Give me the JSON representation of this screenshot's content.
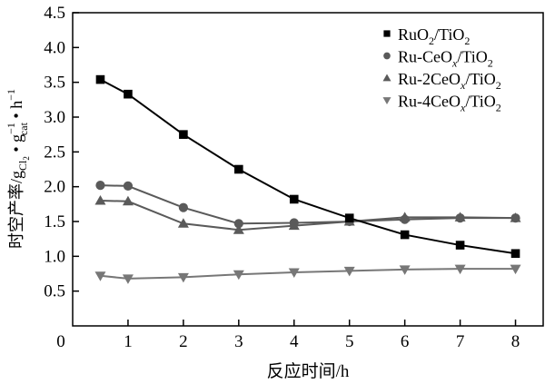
{
  "chart_data": {
    "type": "line",
    "title": "",
    "xlabel": "反应时间/h",
    "ylabel": {
      "main": "时空产率/g",
      "sub1": "Cl",
      "sub1b": "2",
      "mid": " • g",
      "sup2": "−1",
      "sub2": "cat",
      "end": " • h",
      "sup3": "−1"
    },
    "xlim": [
      0,
      8.5
    ],
    "ylim": [
      0,
      4.5
    ],
    "origin_label": "0",
    "xticks": [
      1,
      2,
      3,
      4,
      5,
      6,
      7,
      8
    ],
    "xtick_labels": [
      "1",
      "2",
      "3",
      "4",
      "5",
      "6",
      "7",
      "8"
    ],
    "yticks": [
      0.5,
      1.0,
      1.5,
      2.0,
      2.5,
      3.0,
      3.5,
      4.0,
      4.5
    ],
    "ytick_labels": [
      "0.5",
      "1.0",
      "1.5",
      "2.0",
      "2.5",
      "3.0",
      "3.5",
      "4.0",
      "4.5"
    ],
    "grid": false,
    "legend_position": "top-right",
    "x": [
      0.5,
      1,
      2,
      3,
      4,
      5,
      6,
      7,
      8
    ],
    "series": [
      {
        "name": "RuO2/TiO2",
        "legend": {
          "a": "RuO",
          "b": "2",
          "c": "/TiO",
          "d": "2"
        },
        "marker": "square",
        "color": "#000000",
        "values": [
          3.54,
          3.33,
          2.75,
          2.25,
          1.82,
          1.55,
          1.31,
          1.16,
          1.04
        ]
      },
      {
        "name": "Ru-CeOx/TiO2",
        "legend": {
          "a": "Ru-CeO",
          "b": "x",
          "c": "/TiO",
          "d": "2"
        },
        "marker": "circle",
        "color": "#5a5a5a",
        "values": [
          2.02,
          2.01,
          1.7,
          1.47,
          1.48,
          1.5,
          1.53,
          1.55,
          1.55
        ]
      },
      {
        "name": "Ru-2CeOx/TiO2",
        "legend": {
          "a": "Ru-2CeO",
          "b": "x",
          "c": "/TiO",
          "d": "2"
        },
        "marker": "triangle-up",
        "color": "#5a5a5a",
        "values": [
          1.8,
          1.79,
          1.47,
          1.38,
          1.44,
          1.5,
          1.56,
          1.56,
          1.55
        ]
      },
      {
        "name": "Ru-4CeOx/TiO2",
        "legend": {
          "a": "Ru-4CeO",
          "b": "x",
          "c": "/TiO",
          "d": "2"
        },
        "marker": "triangle-down",
        "color": "#777777",
        "values": [
          0.72,
          0.68,
          0.7,
          0.74,
          0.77,
          0.79,
          0.81,
          0.82,
          0.82
        ]
      }
    ]
  }
}
